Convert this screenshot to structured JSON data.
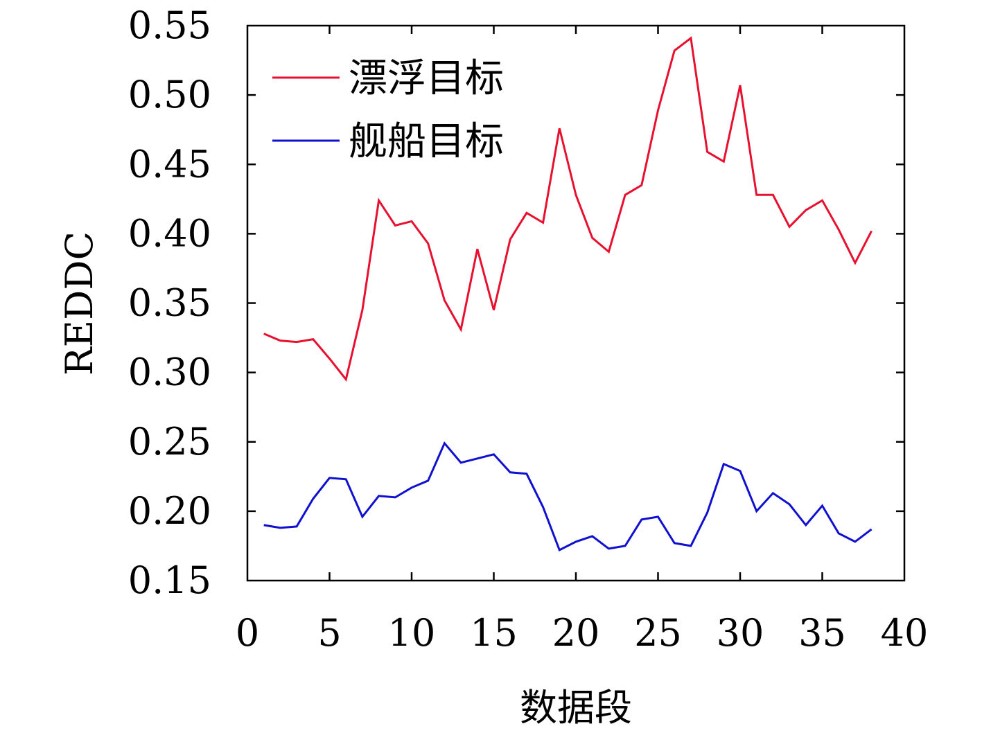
{
  "chart_data": {
    "type": "line",
    "xlabel": "数据段",
    "ylabel": "REDDC",
    "xlim": [
      0,
      40
    ],
    "ylim": [
      0.15,
      0.55
    ],
    "x_ticks": [
      "0",
      "5",
      "10",
      "15",
      "20",
      "25",
      "30",
      "35",
      "40"
    ],
    "y_ticks": [
      "0.15",
      "0.20",
      "0.25",
      "0.30",
      "0.35",
      "0.40",
      "0.45",
      "0.50",
      "0.55"
    ],
    "grid": false,
    "legend_position": "top-left",
    "x": [
      1,
      2,
      3,
      4,
      5,
      6,
      7,
      8,
      9,
      10,
      11,
      12,
      13,
      14,
      15,
      16,
      17,
      18,
      19,
      20,
      21,
      22,
      23,
      24,
      25,
      26,
      27,
      28,
      29,
      30,
      31,
      32,
      33,
      34,
      35,
      36,
      37,
      38
    ],
    "series": [
      {
        "name": "漂浮目标",
        "color": "#e8102f",
        "values": [
          0.328,
          0.323,
          0.322,
          0.324,
          0.31,
          0.295,
          0.345,
          0.424,
          0.406,
          0.409,
          0.393,
          0.352,
          0.331,
          0.389,
          0.345,
          0.396,
          0.415,
          0.408,
          0.476,
          0.428,
          0.397,
          0.387,
          0.428,
          0.435,
          0.489,
          0.532,
          0.541,
          0.459,
          0.452,
          0.507,
          0.428,
          0.428,
          0.405,
          0.417,
          0.424,
          0.403,
          0.379,
          0.402
        ]
      },
      {
        "name": "舰船目标",
        "color": "#1010d0",
        "values": [
          0.19,
          0.188,
          0.189,
          0.209,
          0.224,
          0.223,
          0.196,
          0.211,
          0.21,
          0.217,
          0.222,
          0.249,
          0.235,
          0.238,
          0.241,
          0.228,
          0.227,
          0.203,
          0.172,
          0.178,
          0.182,
          0.173,
          0.175,
          0.194,
          0.196,
          0.177,
          0.175,
          0.199,
          0.234,
          0.229,
          0.2,
          0.213,
          0.205,
          0.19,
          0.204,
          0.184,
          0.178,
          0.187
        ]
      }
    ]
  }
}
